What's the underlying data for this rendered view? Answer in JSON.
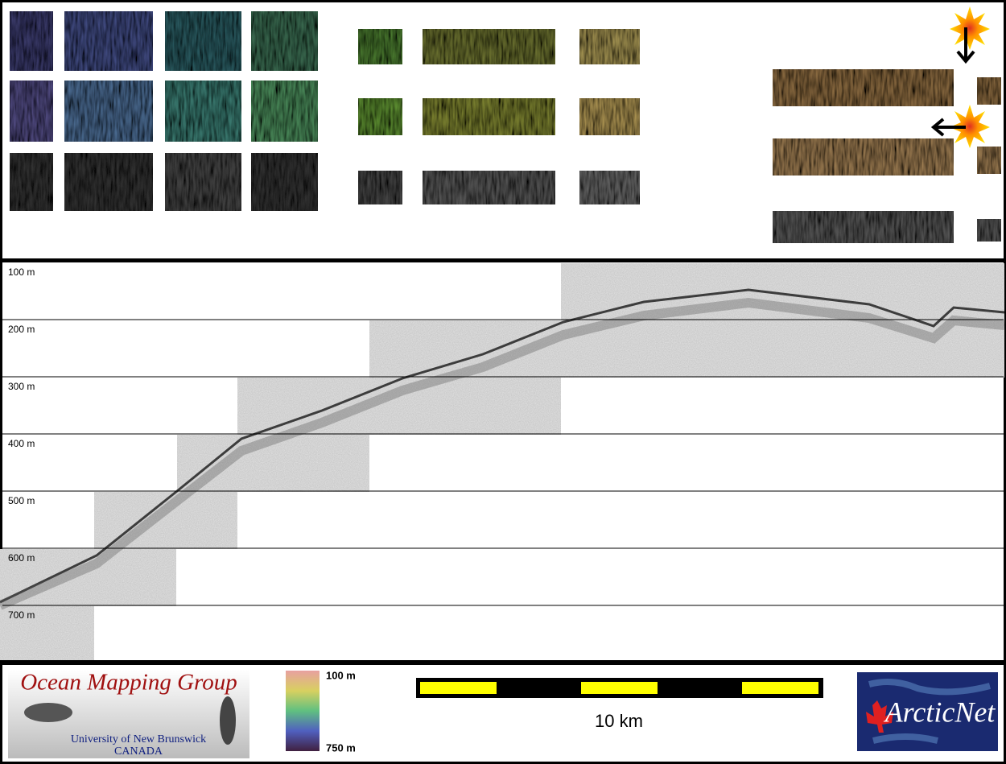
{
  "profile": {
    "depth_labels": [
      "100 m",
      "200 m",
      "300 m",
      "400 m",
      "500 m",
      "600 m",
      "700 m"
    ]
  },
  "logo": {
    "name": "Ocean Mapping Group",
    "university": "University of New Brunswick",
    "country": "CANADA"
  },
  "colorbar": {
    "top_label": "100 m",
    "bottom_label": "750 m"
  },
  "scale_bar": {
    "label": "10 km"
  },
  "partner_logo": {
    "name": "ArcticNet"
  }
}
